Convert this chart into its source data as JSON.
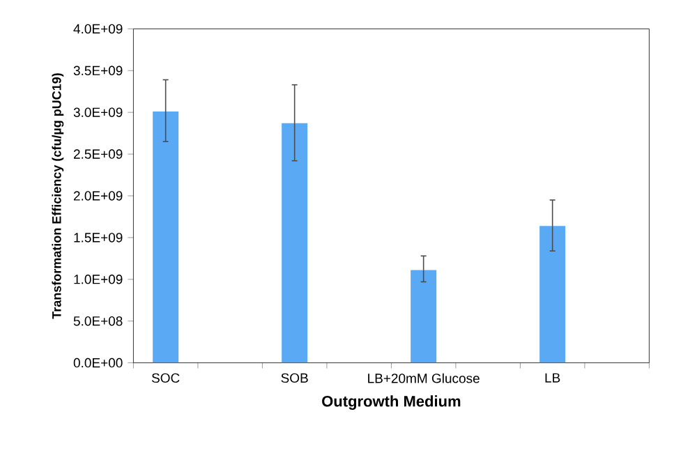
{
  "chart_data": {
    "type": "bar",
    "xlabel": "Outgrowth Medium",
    "ylabel": "Transformation Efficiency (cfu/µg pUC19)",
    "categories": [
      "SOC",
      null,
      "SOB",
      null,
      "LB+20mM Glucose",
      null,
      "LB",
      null
    ],
    "values": [
      3010000000.0,
      null,
      2870000000.0,
      null,
      1110000000.0,
      null,
      1640000000.0,
      null
    ],
    "errors": [
      [
        2650000000.0,
        3390000000.0
      ],
      null,
      [
        2420000000.0,
        3330000000.0
      ],
      null,
      [
        970000000.0,
        1280000000.0
      ],
      null,
      [
        1340000000.0,
        1950000000.0
      ],
      null
    ],
    "color": "#5aa9f5",
    "ylim": [
      0,
      4000000000.0
    ],
    "yticks": [
      {
        "value": 0,
        "label": "0.0E+00"
      },
      {
        "value": 500000000.0,
        "label": "5.0E+08"
      },
      {
        "value": 1000000000.0,
        "label": "1.0E+09"
      },
      {
        "value": 1500000000.0,
        "label": "1.5E+09"
      },
      {
        "value": 2000000000.0,
        "label": "2.0E+09"
      },
      {
        "value": 2500000000.0,
        "label": "2.5E+09"
      },
      {
        "value": 3000000000.0,
        "label": "3.0E+09"
      },
      {
        "value": 3500000000.0,
        "label": "3.5E+09"
      },
      {
        "value": 4000000000.0,
        "label": "4.0E+09"
      }
    ],
    "grid": false
  }
}
